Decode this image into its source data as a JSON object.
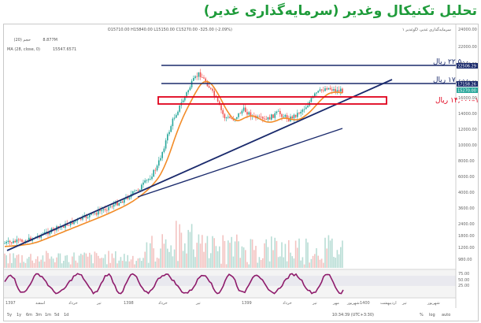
{
  "headline": "تحلیل تکنیکال وغدیر (سرمایه‌گذاری غدیر)",
  "chart_header": {
    "symbol_line": "وغدیر ۱D ،سرمایه‌گذاری غدیر",
    "ohlc_line": "O15710.00 H15840.00 L15150.00 C15270.00 -325.00 (-2.09%)",
    "volume_label": "حجم (20)",
    "volume_value": "8.877M",
    "ma_label": "MA (28, close, 0)",
    "ma_value": "15547.6571"
  },
  "price_levels": [
    {
      "label": "۲۲,۵۰۰ ریال",
      "value": 22500,
      "badge": "22506.29",
      "color": "#1a2a6c"
    },
    {
      "label": "۱۷,۰۰۰ ریال",
      "value": 17000,
      "badge": "17158.26",
      "color": "#1a2a6c"
    },
    {
      "label": "۱۲,۵۰۰–۱۴,۰۰۰ ریال",
      "zone": [
        12500,
        14000
      ],
      "color": "#e0001b"
    }
  ],
  "last_price_badge": "15270.00",
  "y_ticks": [
    "24000.00",
    "22000.00",
    "20000.00",
    "18000.00",
    "16000.00",
    "14000.00",
    "12000.00",
    "10000.00",
    "8000.00",
    "6000.00",
    "4000.00",
    "3600.00",
    "2400.00",
    "1800.00",
    "1200.00",
    "980.00"
  ],
  "osc_ticks": [
    "75.00",
    "50.00",
    "25.00"
  ],
  "x_ticks": [
    "1397",
    "اسفند",
    "خرداد",
    "تیر",
    "1398",
    "خرداد",
    "تیر",
    "1399",
    "خرداد",
    "تیر",
    "مهر",
    "شهریور",
    "1400",
    "اردیبهشت",
    "تیر",
    "شهریور"
  ],
  "bottom_bar": {
    "ranges": [
      "5y",
      "1y",
      "6m",
      "3m",
      "1m",
      "5d",
      "1d"
    ],
    "time": "10:34:39 (UTC+3:30)",
    "percent": "%",
    "log": "log",
    "auto": "auto"
  },
  "colors": {
    "up": "#26a69a",
    "down": "#ef5350",
    "ma": "#f28c28",
    "osc": "#8e1b6b",
    "trend": "#1a2a6c",
    "accent": "#1e9b3a"
  },
  "chart_data": {
    "type": "candlestick",
    "title": "تحلیل تکنیکال وغدیر (سرمایه‌گذاری غدیر)",
    "ylim": [
      900,
      24000
    ],
    "price_series_approx": [
      {
        "t": "1397",
        "close": 1300
      },
      {
        "t": "اسفند 1397",
        "close": 1900
      },
      {
        "t": "1398",
        "close": 3600
      },
      {
        "t": "تیر 1398",
        "close": 5200
      },
      {
        "t": "اسفند 1398",
        "close": 8000
      },
      {
        "t": "1399",
        "close": 16000
      },
      {
        "t": "خرداد 1399",
        "close": 22500
      },
      {
        "t": "تیر 1399",
        "close": 17500
      },
      {
        "t": "مهر 1399",
        "close": 13500
      },
      {
        "t": "اسفند 1399",
        "close": 13000
      },
      {
        "t": "1400",
        "close": 16500
      },
      {
        "t": "اردیبهشت 1400",
        "close": 15270
      }
    ],
    "resistance_levels": [
      22500,
      17000
    ],
    "support_zone": [
      12500,
      14000
    ],
    "oscillator_levels": [
      75,
      50,
      25
    ]
  }
}
